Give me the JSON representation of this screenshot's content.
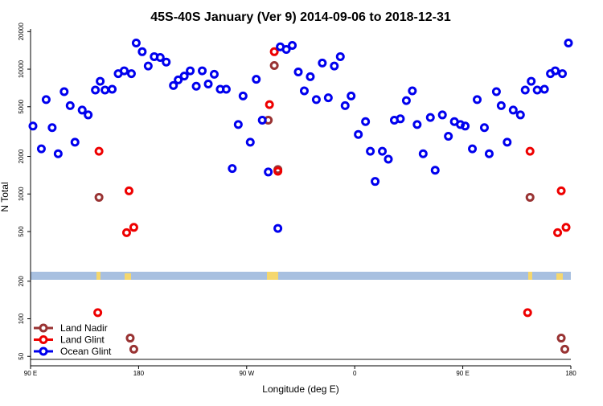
{
  "chart_data": {
    "type": "scatter",
    "title": "45S-40S January (Ver 9)   2014-09-06 to 2018-12-31",
    "x_label": "Longitude (deg E)",
    "y_label": "N Total",
    "log_y": true,
    "legend": "lower left",
    "xlim": [
      90,
      540
    ],
    "xticks": [
      {
        "value": 90,
        "label": "90 E"
      },
      {
        "value": 180,
        "label": "180"
      },
      {
        "value": 270,
        "label": "90 W"
      },
      {
        "value": 360,
        "label": "0"
      },
      {
        "value": 450,
        "label": "90 E"
      },
      {
        "value": 540,
        "label": "180"
      }
    ],
    "ylim": [
      42,
      21000
    ],
    "yticks": [
      50,
      100,
      200,
      500,
      1000,
      2000,
      5000,
      10000,
      20000
    ],
    "series": [
      {
        "name": "Land Nadir",
        "color": "#993333",
        "x": [
          147,
          173,
          176,
          288,
          293,
          296,
          506,
          532,
          535
        ],
        "values": [
          940,
          70,
          57,
          3900,
          10700,
          1570,
          940,
          70,
          57
        ]
      },
      {
        "name": "Land Glint",
        "color": "#ee0000",
        "x": [
          147,
          172,
          170,
          176,
          146,
          289,
          293,
          296,
          506,
          532,
          529,
          536,
          504
        ],
        "values": [
          2200,
          1060,
          490,
          540,
          112,
          5200,
          13800,
          1520,
          2200,
          1060,
          490,
          540,
          112
        ]
      },
      {
        "name": "Ocean Glint",
        "color": "#0000ee",
        "x": [
          92,
          99,
          103,
          108,
          113,
          118,
          123,
          127,
          133,
          138,
          144,
          148,
          152,
          158,
          163,
          168,
          174,
          178,
          183,
          188,
          193,
          198,
          203,
          209,
          213,
          218,
          223,
          228,
          233,
          238,
          243,
          248,
          253,
          258,
          263,
          267,
          273,
          278,
          283,
          288,
          296,
          298,
          303,
          308,
          313,
          318,
          323,
          328,
          333,
          338,
          343,
          348,
          352,
          357,
          363,
          369,
          373,
          377,
          383,
          388,
          393,
          398,
          403,
          408,
          412,
          417,
          423,
          427,
          433,
          438,
          443,
          448,
          452,
          458,
          462,
          468,
          472,
          478,
          482,
          487,
          492,
          498,
          502,
          507,
          512,
          518,
          523,
          527,
          533,
          538
        ],
        "values": [
          3500,
          2300,
          5700,
          3400,
          2100,
          6600,
          5100,
          2600,
          4700,
          4300,
          6800,
          8000,
          6800,
          6900,
          9200,
          9700,
          9200,
          16200,
          13800,
          10600,
          12600,
          12400,
          11400,
          7400,
          8200,
          8800,
          9700,
          7300,
          9700,
          7600,
          9100,
          6900,
          6900,
          1600,
          3600,
          6100,
          2600,
          8300,
          3900,
          1500,
          530,
          15100,
          14400,
          15500,
          9500,
          6700,
          8700,
          5700,
          11200,
          5900,
          10600,
          12600,
          5100,
          6100,
          3000,
          3800,
          2200,
          1260,
          2200,
          1900,
          3900,
          4000,
          5600,
          6700,
          3600,
          2100,
          4100,
          1550,
          4300,
          2900,
          3800,
          3600,
          3500,
          2300,
          5700,
          3400,
          2100,
          6600,
          5100,
          2600,
          4700,
          4300,
          6800,
          8000,
          6800,
          6900,
          9200,
          9700,
          9200,
          16200
        ]
      }
    ]
  }
}
